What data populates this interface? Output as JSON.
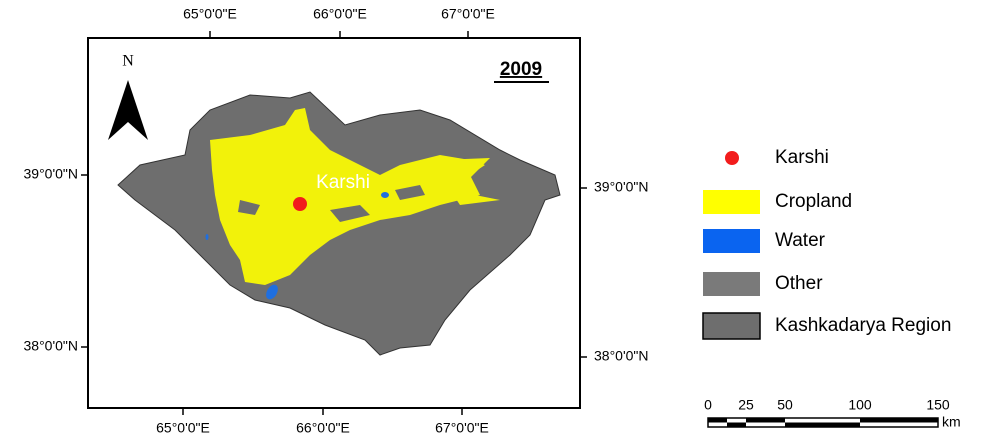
{
  "map": {
    "year": "2009",
    "north": "N",
    "city_label": "Karshi",
    "top_longitudes": [
      "65°0'0\"E",
      "66°0'0\"E",
      "67°0'0\"E"
    ],
    "bottom_longitudes": [
      "65°0'0\"E",
      "66°0'0\"E",
      "67°0'0\"E"
    ],
    "left_latitudes": [
      "39°0'0\"N",
      "38°0'0\"N"
    ],
    "right_latitudes": [
      "39°0'0\"N",
      "38°0'0\"N"
    ]
  },
  "legend": [
    {
      "label": "Karshi"
    },
    {
      "label": "Cropland"
    },
    {
      "label": "Water"
    },
    {
      "label": "Other"
    },
    {
      "label": "Kashkadarya Region"
    }
  ],
  "scale_bar": {
    "ticks": [
      "0",
      "25",
      "50",
      "100",
      "150"
    ],
    "unit": "km"
  }
}
